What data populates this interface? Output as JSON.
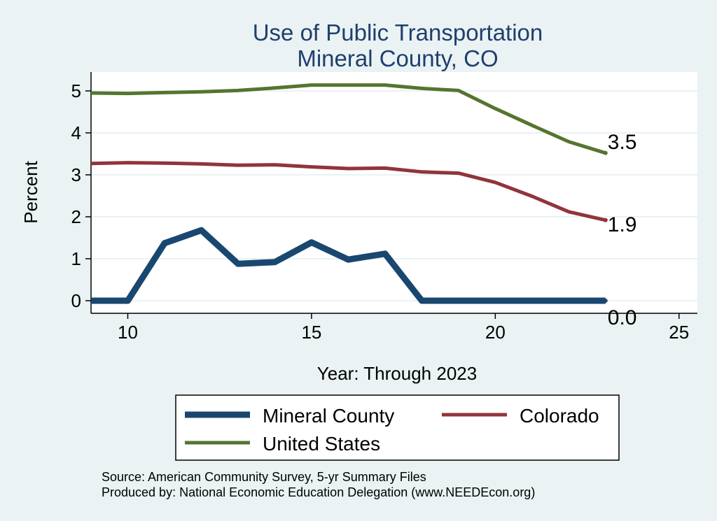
{
  "chart_data": {
    "type": "line",
    "title_lines": [
      "Use of Public Transportation",
      "Mineral County, CO"
    ],
    "xlabel": "Year: Through 2023",
    "ylabel": "Percent",
    "xlim": [
      9,
      25.5
    ],
    "ylim": [
      -0.3,
      5.45
    ],
    "xticks": [
      10,
      15,
      20,
      25
    ],
    "yticks": [
      0,
      1,
      2,
      3,
      4,
      5
    ],
    "grid": "horizontal",
    "legend_position": "bottom",
    "series": [
      {
        "name": "Mineral County",
        "color": "#1a476f",
        "x": [
          9,
          10,
          11,
          12,
          13,
          14,
          15,
          16,
          17,
          18,
          19,
          20,
          21,
          22,
          23
        ],
        "y": [
          0.0,
          0.0,
          1.37,
          1.68,
          0.88,
          0.92,
          1.39,
          0.98,
          1.12,
          0.0,
          0.0,
          0.0,
          0.0,
          0.0,
          0.0
        ],
        "end_label": "0.0"
      },
      {
        "name": "Colorado",
        "color": "#90353b",
        "x": [
          9,
          10,
          11,
          12,
          13,
          14,
          15,
          16,
          17,
          18,
          19,
          20,
          21,
          22,
          23
        ],
        "y": [
          3.27,
          3.29,
          3.28,
          3.26,
          3.23,
          3.24,
          3.19,
          3.15,
          3.16,
          3.07,
          3.04,
          2.82,
          2.49,
          2.12,
          1.92
        ],
        "end_label": "1.9"
      },
      {
        "name": "United States",
        "color": "#55752f",
        "x": [
          9,
          10,
          11,
          12,
          13,
          14,
          15,
          16,
          17,
          18,
          19,
          20,
          21,
          22,
          23
        ],
        "y": [
          4.95,
          4.94,
          4.96,
          4.98,
          5.01,
          5.07,
          5.14,
          5.14,
          5.14,
          5.06,
          5.01,
          4.58,
          4.18,
          3.79,
          3.52
        ],
        "end_label": "3.5"
      }
    ],
    "notes": [
      "Source: American Community Survey, 5-yr Summary Files",
      "Produced by: National Economic Education Delegation (www.NEEDEcon.org)"
    ]
  }
}
